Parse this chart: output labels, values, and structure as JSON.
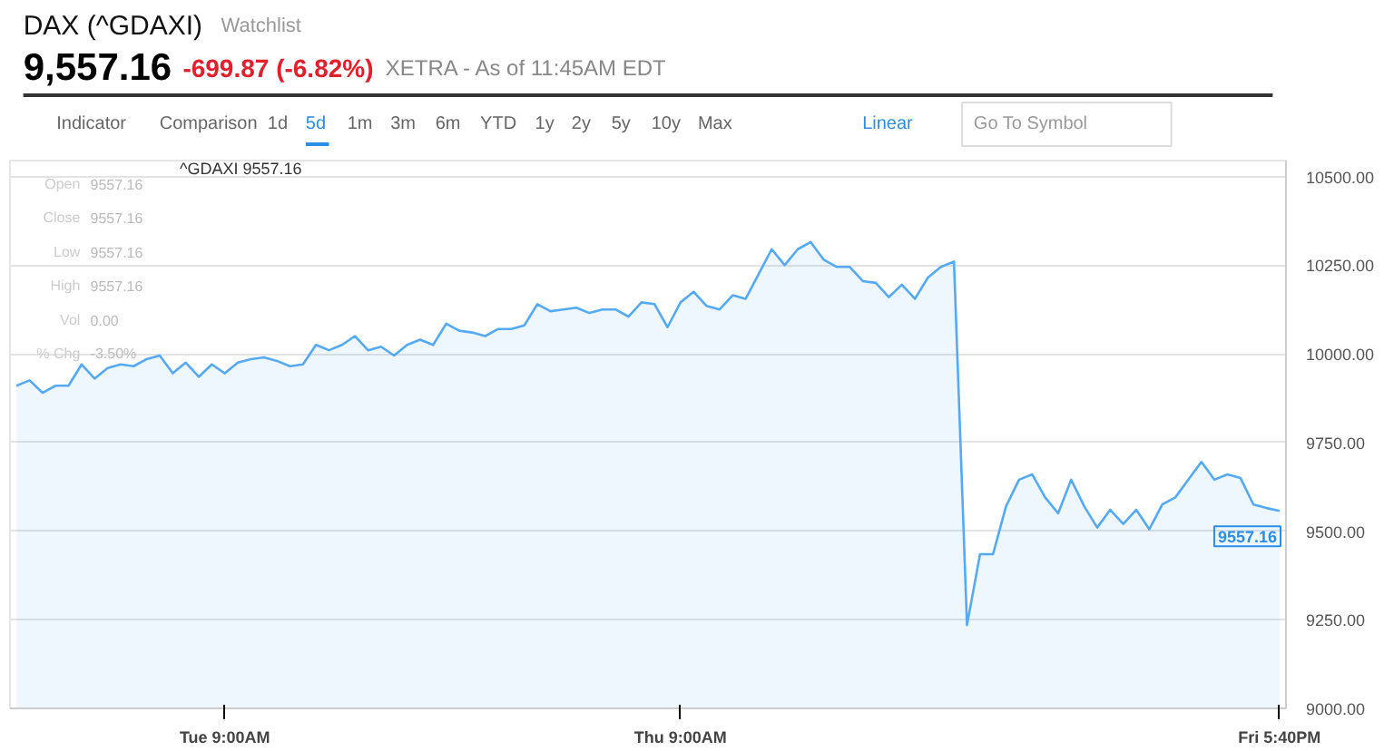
{
  "chart_data": {
    "type": "area",
    "title": "DAX (^GDAXI)",
    "subtitle": "9,557.16",
    "annotations": [
      "Watchlist",
      "-699.87 (-6.82%)",
      "XETRA - As of 11:45AM EDT",
      "Indicator",
      "Comparison",
      "1d",
      "5d",
      "1m",
      "3m",
      "6m",
      "YTD",
      "1y",
      "2y",
      "5y",
      "10y",
      "Max",
      "Linear",
      "Go To Symbol",
      "^GDAXI 9557.16",
      "Open",
      "9557.16",
      "Close",
      "9557.16",
      "Low",
      "9557.16",
      "High",
      "9557.16",
      "Vol",
      "0.00",
      "% Chg",
      "-3.50%",
      "9557.16"
    ],
    "categories": [
      null,
      null,
      null,
      null,
      null,
      null,
      null,
      null,
      null,
      null,
      null,
      null,
      null,
      null,
      null,
      null,
      "Tue 9:00AM",
      null,
      null,
      null,
      null,
      null,
      null,
      null,
      null,
      null,
      null,
      null,
      null,
      null,
      null,
      null,
      null,
      null,
      null,
      null,
      null,
      null,
      null,
      null,
      null,
      null,
      null,
      null,
      null,
      null,
      null,
      null,
      null,
      null,
      null,
      "Thu 9:00AM",
      null,
      null,
      null,
      null,
      null,
      null,
      null,
      null,
      null,
      null,
      null,
      null,
      null,
      null,
      null,
      null,
      null,
      null,
      null,
      null,
      null,
      null,
      null,
      null,
      null,
      null,
      null,
      null,
      null,
      null,
      null,
      null,
      null,
      null,
      null,
      null,
      null,
      null,
      null,
      null,
      null,
      null,
      null,
      null,
      null,
      "Fri 5:40PM"
    ],
    "series": [
      {
        "color": "#55aaf5",
        "values": [
          9910,
          9925,
          9890,
          9910,
          9910,
          9970,
          9930,
          9960,
          9970,
          9965,
          9985,
          9995,
          9945,
          9975,
          9935,
          9970,
          9945,
          9975,
          9985,
          9990,
          9980,
          9965,
          9970,
          10025,
          10010,
          10025,
          10050,
          10010,
          10020,
          9995,
          10025,
          10040,
          10025,
          10085,
          10065,
          10060,
          10050,
          10070,
          10070,
          10080,
          10140,
          10120,
          10125,
          10130,
          10115,
          10125,
          10125,
          10105,
          10145,
          10140,
          10075,
          10145,
          10175,
          10135,
          10125,
          10165,
          10155,
          10225,
          10295,
          10250,
          10295,
          10315,
          10265,
          10245,
          10245,
          10205,
          10200,
          10160,
          10195,
          10155,
          10215,
          10245,
          10260,
          9235,
          9435,
          9435,
          9570,
          9645,
          9660,
          9595,
          9550,
          9645,
          9570,
          9510,
          9560,
          9520,
          9560,
          9505,
          9575,
          9595,
          9645,
          9695,
          9645,
          9660,
          9650,
          9575,
          9565,
          9557
        ]
      }
    ],
    "ylim": [
      9000,
      10545
    ],
    "yticks": [
      {
        "value": 9000,
        "label": "9000.00"
      },
      {
        "value": 9250,
        "label": "9250.00"
      },
      {
        "value": 9500,
        "label": "9500.00"
      },
      {
        "value": 9750,
        "label": "9750.00"
      },
      {
        "value": 10000,
        "label": "10000.00"
      },
      {
        "value": 10250,
        "label": "10250.00"
      },
      {
        "value": 10500,
        "label": "10500.00"
      }
    ],
    "grid": "y"
  }
}
